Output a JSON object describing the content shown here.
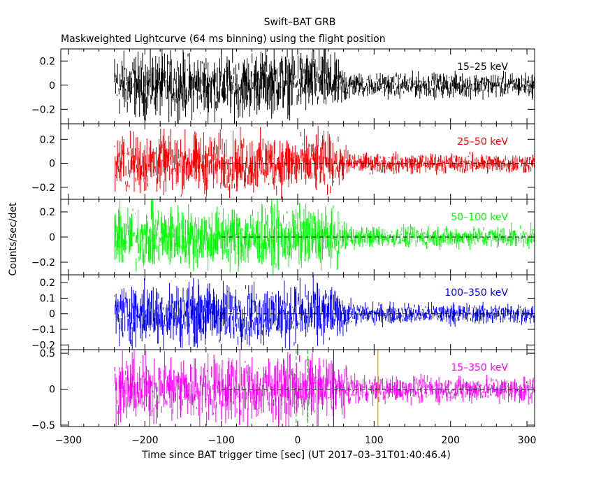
{
  "header": {
    "title": "Swift–BAT GRB",
    "subtitle": "Maskweighted Lightcurve (64 ms binning) using the flight position"
  },
  "axes": {
    "xlabel": "Time since BAT trigger time [sec] (UT 2017–03–31T01:40:46.4)",
    "ylabel": "Counts/sec/det"
  },
  "chart_data": {
    "type": "line",
    "x_range": [
      -310,
      310
    ],
    "x_ticks": [
      -300,
      -200,
      -100,
      0,
      100,
      200,
      300
    ],
    "x_tick_labels": [
      "−300",
      "−200",
      "−100",
      "0",
      "100",
      "200",
      "300"
    ],
    "data_x_range": [
      -240,
      310
    ],
    "bin_size_sec": 0.064,
    "baseline_from": -100,
    "panels": [
      {
        "name": "15–25 keV",
        "color": "#000000",
        "ylim": [
          -0.32,
          0.3
        ],
        "yticks": [
          -0.2,
          0,
          0.2
        ],
        "ytick_labels": [
          "−0.2",
          "0",
          "0.2"
        ],
        "noise_pre": 0.16,
        "noise_post": 0.06,
        "show_baseline": false
      },
      {
        "name": "25–50 keV",
        "color": "#ff0000",
        "ylim": [
          -0.3,
          0.33
        ],
        "yticks": [
          -0.2,
          0,
          0.2
        ],
        "ytick_labels": [
          "−0.2",
          "0",
          "0.2"
        ],
        "noise_pre": 0.15,
        "noise_post": 0.05,
        "show_baseline": true
      },
      {
        "name": "50–100 keV",
        "color": "#00ff00",
        "ylim": [
          -0.3,
          0.3
        ],
        "yticks": [
          -0.2,
          0,
          0.2
        ],
        "ytick_labels": [
          "−0.2",
          "0",
          "0.2"
        ],
        "noise_pre": 0.15,
        "noise_post": 0.05,
        "show_baseline": true
      },
      {
        "name": "100–350 keV",
        "color": "#0000ff",
        "ylim": [
          -0.23,
          0.25
        ],
        "yticks": [
          -0.2,
          -0.1,
          0,
          0.1,
          0.2
        ],
        "ytick_labels": [
          "−0.2",
          "−0.1",
          "0",
          "0.1",
          "0.2"
        ],
        "noise_pre": 0.12,
        "noise_post": 0.04,
        "show_baseline": true
      },
      {
        "name": "15–350 keV",
        "color": "#ff00ff",
        "ylim": [
          -0.52,
          0.55
        ],
        "yticks": [
          -0.5,
          0,
          0.5
        ],
        "ytick_labels": [
          "−0.5",
          "0",
          "0.5"
        ],
        "noise_pre": 0.28,
        "noise_post": 0.11,
        "show_baseline": true
      }
    ],
    "markers": [
      {
        "x": -2,
        "color": "#00aa00",
        "style": "dashed"
      },
      {
        "x": 13,
        "color": "#00aa00",
        "style": "dashed"
      },
      {
        "x": 47,
        "color": "#0000ff",
        "style": "solid"
      },
      {
        "x": 105,
        "color": "#cc8800",
        "style": "solid"
      }
    ]
  }
}
